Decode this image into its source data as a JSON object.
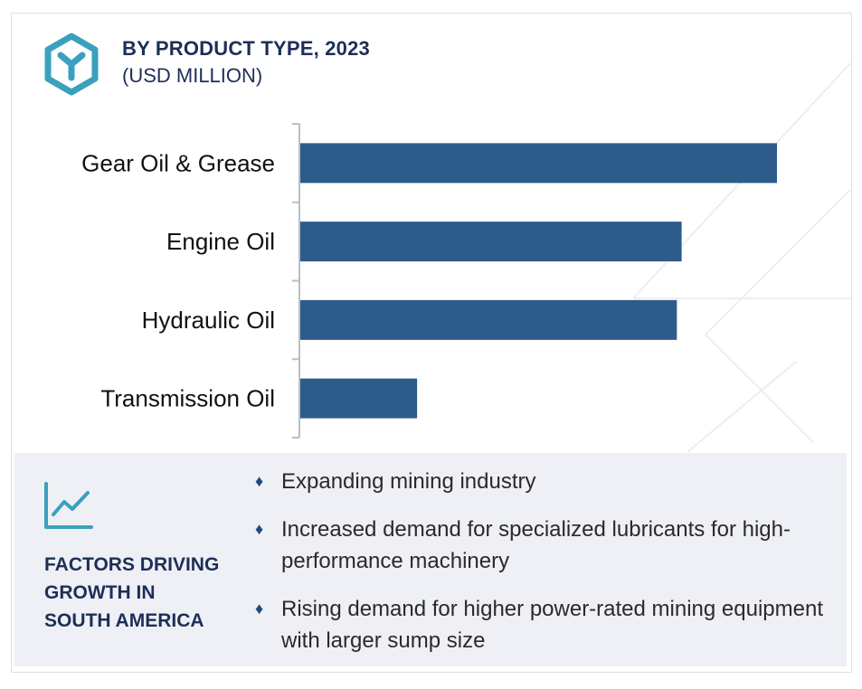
{
  "header": {
    "title": "BY PRODUCT TYPE, 2023",
    "subtitle": "(USD MILLION)",
    "logo_icon": "hexagon-y-logo-icon"
  },
  "colors": {
    "bar": "#2d5c8a",
    "title": "#1d2f57",
    "teal": "#3aa0be",
    "panel": "#eef0f5"
  },
  "chart_data": {
    "type": "bar",
    "orientation": "horizontal",
    "categories": [
      "Gear Oil & Grease",
      "Engine Oil",
      "Hydraulic Oil",
      "Transmission Oil"
    ],
    "values": [
      100,
      80,
      79,
      24.5
    ],
    "title": "BY PRODUCT TYPE, 2023",
    "subtitle": "(USD MILLION)",
    "xlim": [
      0,
      100
    ],
    "grid": false,
    "legend": "none"
  },
  "factors": {
    "icon": "line-chart-icon",
    "title_lines": [
      "FACTORS DRIVING",
      "GROWTH IN",
      "SOUTH AMERICA"
    ],
    "bullet_icon": "diamond-bullet-icon",
    "items": [
      "Expanding mining industry",
      "Increased demand for specialized lubricants for high-performance machinery",
      "Rising demand for higher power-rated mining equipment with larger sump size"
    ]
  }
}
